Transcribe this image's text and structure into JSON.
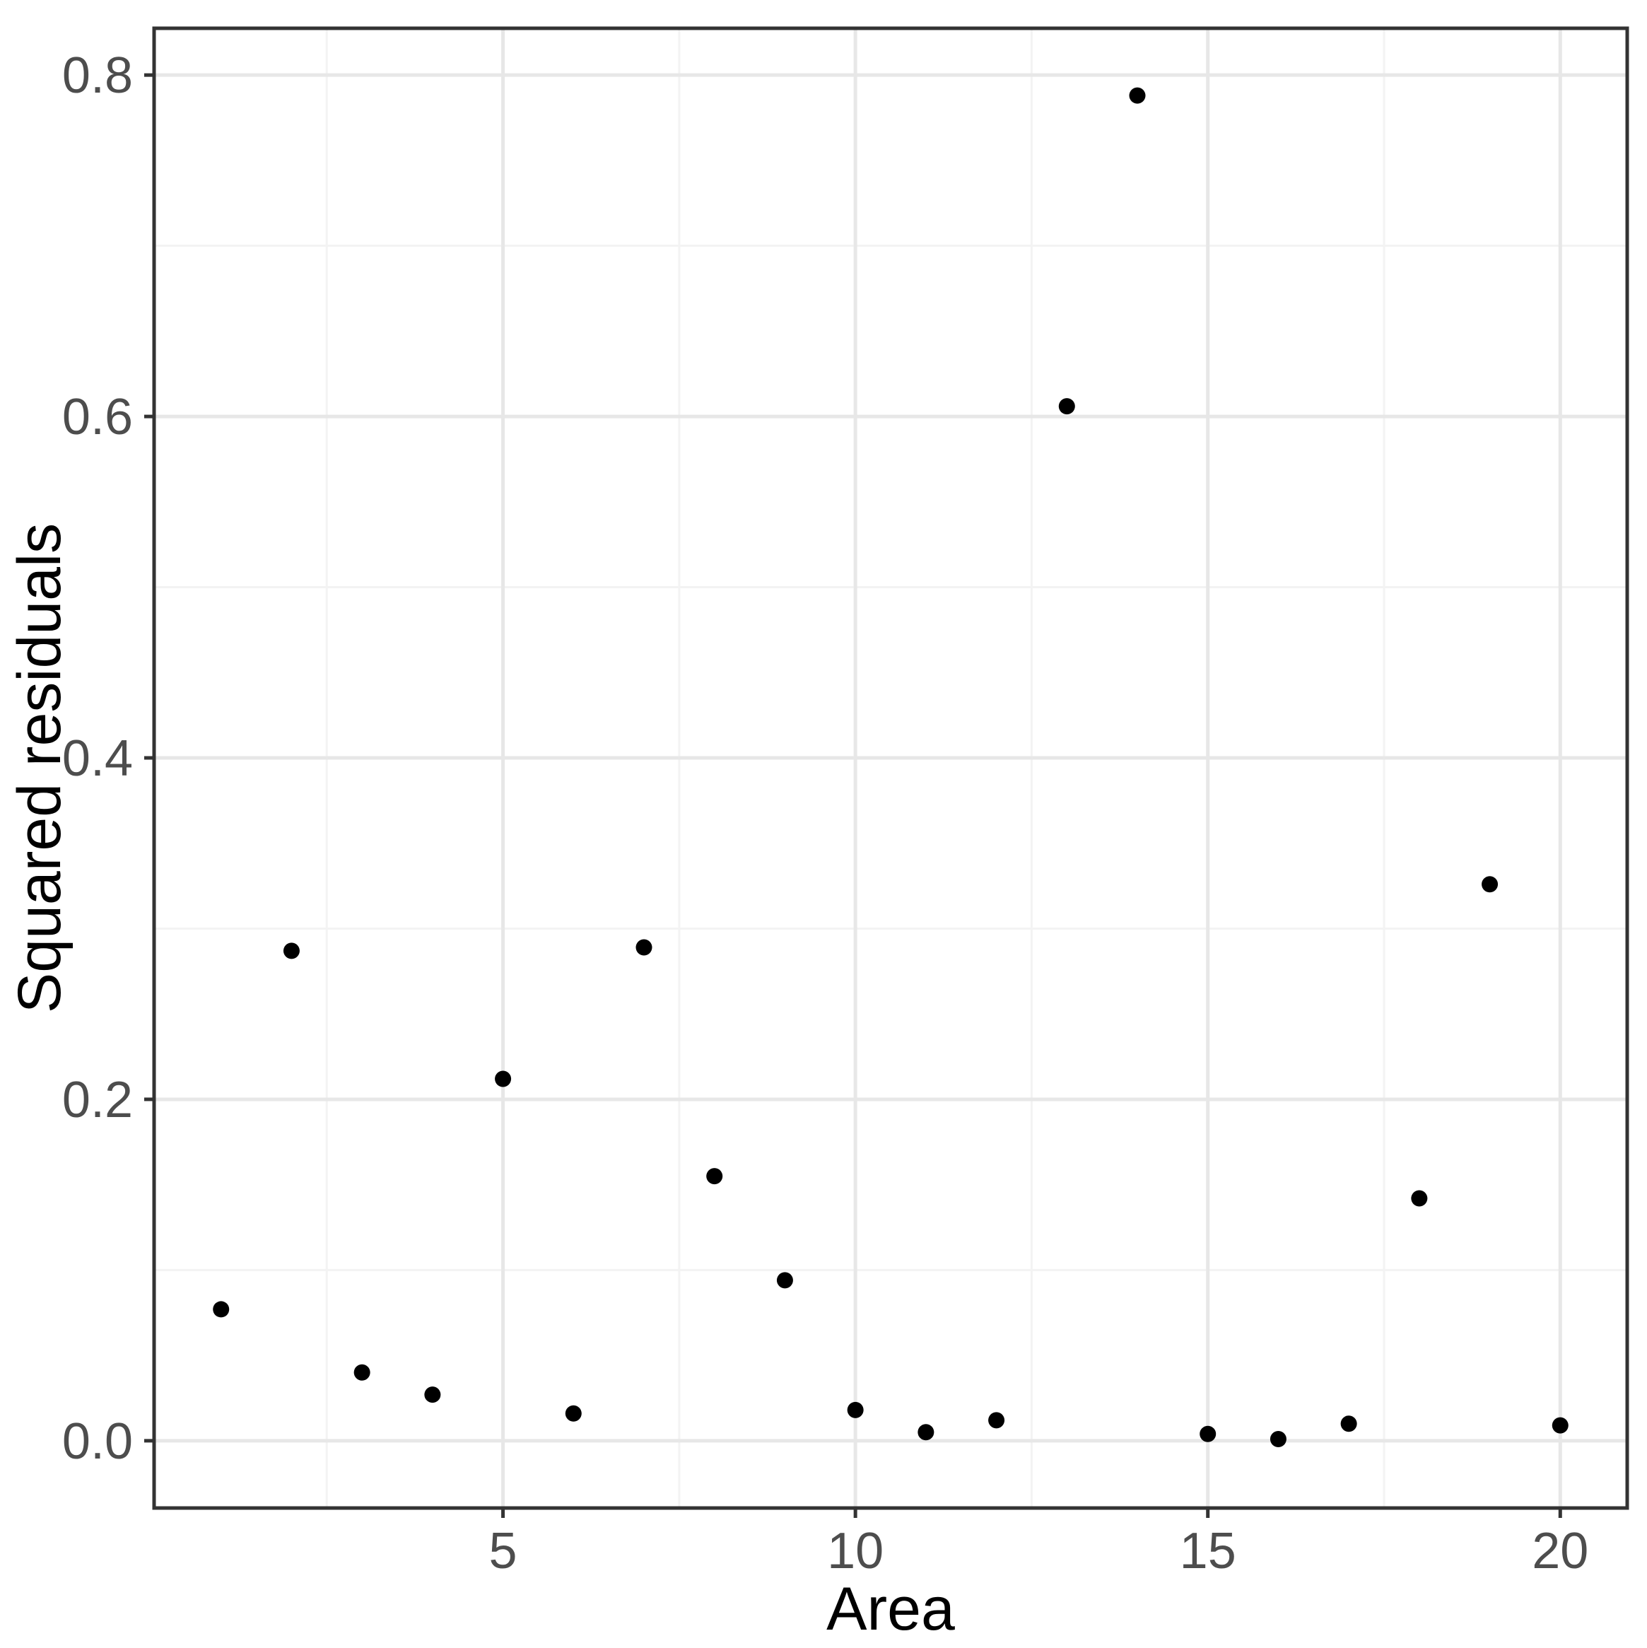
{
  "figure": {
    "background": "#ffffff"
  },
  "chart_data": {
    "type": "scatter",
    "title": "",
    "xlabel": "Area",
    "ylabel": "Squared residuals",
    "x": [
      1,
      2,
      3,
      4,
      5,
      6,
      7,
      8,
      9,
      10,
      11,
      12,
      13,
      14,
      15,
      16,
      17,
      18,
      19,
      20
    ],
    "y": [
      0.077,
      0.287,
      0.04,
      0.027,
      0.212,
      0.016,
      0.289,
      0.155,
      0.094,
      0.018,
      0.005,
      0.012,
      0.606,
      0.788,
      0.004,
      0.001,
      0.01,
      0.142,
      0.326,
      0.009
    ],
    "xlim": [
      0.05,
      20.95
    ],
    "ylim": [
      -0.0394,
      0.8274
    ],
    "x_major_ticks": [
      5,
      10,
      15,
      20
    ],
    "x_tick_labels": [
      "5",
      "10",
      "15",
      "20"
    ],
    "x_minor_ticks": [
      2.5,
      7.5,
      12.5,
      17.5
    ],
    "y_major_ticks": [
      0.0,
      0.2,
      0.4,
      0.6,
      0.8
    ],
    "y_tick_labels": [
      "0.0",
      "0.2",
      "0.4",
      "0.6",
      "0.8"
    ],
    "y_minor_ticks": [
      0.1,
      0.3,
      0.5,
      0.7
    ],
    "grid": true,
    "legend": "none",
    "point_color": "#000000",
    "point_radius": 11.5,
    "style": {
      "panel_background": "#ffffff",
      "panel_border": "#333333",
      "grid_major": "#e7e7e7",
      "grid_minor": "#f3f3f3",
      "tick_color": "#333333",
      "tick_label_color": "#4d4d4d",
      "title_color": "#000000"
    }
  }
}
